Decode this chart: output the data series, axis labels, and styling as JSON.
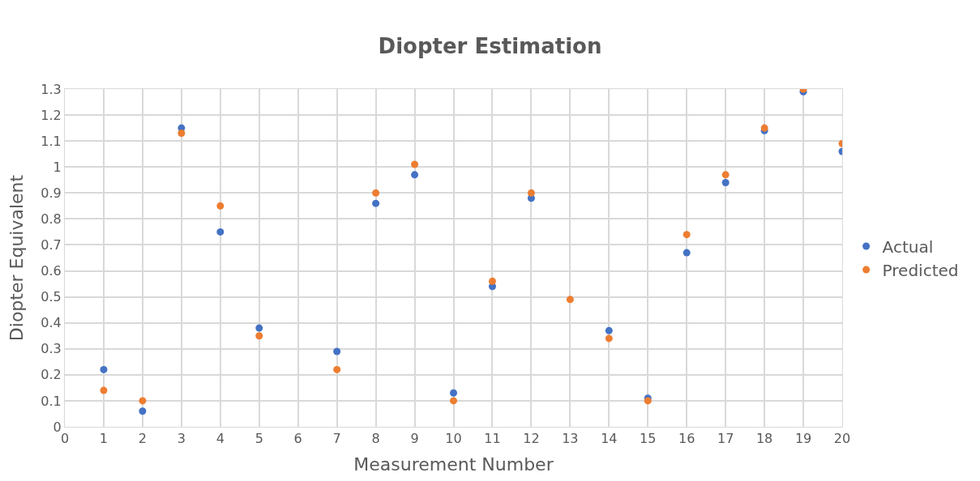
{
  "chart_data": {
    "type": "scatter",
    "title": "Diopter Estimation",
    "xlabel": "Measurement Number",
    "ylabel": "Diopter Equivalent",
    "x": [
      1,
      2,
      3,
      4,
      5,
      7,
      8,
      9,
      10,
      11,
      12,
      13,
      14,
      15,
      16,
      17,
      18,
      19,
      20
    ],
    "series": [
      {
        "name": "Actual",
        "color": "#4472c4",
        "values": [
          0.22,
          0.06,
          1.15,
          0.75,
          0.38,
          0.29,
          0.86,
          0.97,
          0.13,
          0.54,
          0.88,
          null,
          0.37,
          0.11,
          0.67,
          0.94,
          1.14,
          1.29,
          1.06
        ]
      },
      {
        "name": "Predicted",
        "color": "#ed7d31",
        "values": [
          0.14,
          0.1,
          1.13,
          0.85,
          0.35,
          0.22,
          0.9,
          1.01,
          0.1,
          0.56,
          0.9,
          0.49,
          0.34,
          0.1,
          0.74,
          0.97,
          1.15,
          1.3,
          1.09
        ]
      }
    ],
    "xlim": [
      0,
      20
    ],
    "xticks": [
      0,
      1,
      2,
      3,
      4,
      5,
      6,
      7,
      8,
      9,
      10,
      11,
      12,
      13,
      14,
      15,
      16,
      17,
      18,
      19,
      20
    ],
    "ylim": [
      0,
      1.3
    ],
    "yticks": [
      0,
      0.1,
      0.2,
      0.3,
      0.4,
      0.5,
      0.6,
      0.7,
      0.8,
      0.9,
      1,
      1.1,
      1.2,
      1.3
    ],
    "grid": true,
    "legend": "right",
    "marker": "circle"
  }
}
